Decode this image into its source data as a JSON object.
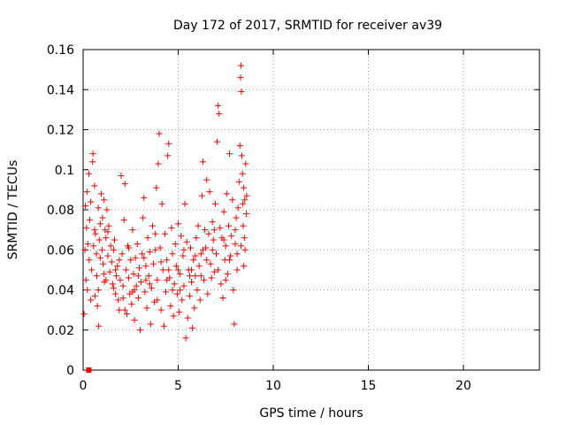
{
  "chart_data": {
    "type": "scatter",
    "title": "Day 172 of 2017, SRMTID for receiver av39",
    "xlabel": "GPS time / hours",
    "ylabel": "SRMTID / TECUs",
    "xlim": [
      0,
      24
    ],
    "ylim": [
      0,
      0.16
    ],
    "xticks": [
      0,
      5,
      10,
      15,
      20
    ],
    "xtick_labels": [
      "0",
      "5",
      "10",
      "15",
      "20"
    ],
    "yticks": [
      0,
      0.02,
      0.04,
      0.06,
      0.08,
      0.1,
      0.12,
      0.14,
      0.16
    ],
    "ytick_labels": [
      "0",
      "0.02",
      "0.04",
      "0.06",
      "0.08",
      "0.1",
      "0.12",
      "0.14",
      "0.16"
    ],
    "grid": true,
    "marker_color": "#ff0000",
    "series": [
      {
        "name": "SRMTID",
        "marker": "plus",
        "x_start": 0.0,
        "x_end": 8.6,
        "points": [
          [
            0.05,
            0.028
          ],
          [
            0.1,
            0.06
          ],
          [
            0.12,
            0.082
          ],
          [
            0.15,
            0.045
          ],
          [
            0.18,
            0.071
          ],
          [
            0.2,
            0.089
          ],
          [
            0.22,
            0.04
          ],
          [
            0.25,
            0.063
          ],
          [
            0.3,
            0.098
          ],
          [
            0.32,
            0.055
          ],
          [
            0.35,
            0.075
          ],
          [
            0.4,
            0.084
          ],
          [
            0.45,
            0.05
          ],
          [
            0.5,
            0.104
          ],
          [
            0.52,
            0.108
          ],
          [
            0.55,
            0.062
          ],
          [
            0.6,
            0.092
          ],
          [
            0.62,
            0.037
          ],
          [
            0.65,
            0.068
          ],
          [
            0.7,
            0.058
          ],
          [
            0.72,
            0.047
          ],
          [
            0.75,
            0.032
          ],
          [
            0.8,
            0.081
          ],
          [
            0.82,
            0.022
          ],
          [
            0.85,
            0.065
          ],
          [
            0.9,
            0.073
          ],
          [
            0.95,
            0.088
          ],
          [
            1.0,
            0.06
          ],
          [
            1.02,
            0.076
          ],
          [
            1.05,
            0.053
          ],
          [
            1.1,
            0.085
          ],
          [
            1.12,
            0.044
          ],
          [
            1.15,
            0.07
          ],
          [
            1.2,
            0.066
          ],
          [
            1.25,
            0.08
          ],
          [
            1.3,
            0.057
          ],
          [
            1.35,
            0.072
          ],
          [
            1.4,
            0.049
          ],
          [
            1.45,
            0.062
          ],
          [
            1.5,
            0.054
          ],
          [
            1.55,
            0.043
          ],
          [
            1.6,
            0.041
          ],
          [
            1.65,
            0.065
          ],
          [
            1.7,
            0.038
          ],
          [
            1.75,
            0.047
          ],
          [
            1.8,
            0.052
          ],
          [
            1.85,
            0.035
          ],
          [
            1.9,
            0.03
          ],
          [
            1.95,
            0.045
          ],
          [
            2.0,
            0.097
          ],
          [
            2.05,
            0.058
          ],
          [
            2.1,
            0.042
          ],
          [
            2.15,
            0.075
          ],
          [
            2.2,
            0.093
          ],
          [
            2.25,
            0.05
          ],
          [
            2.3,
            0.028
          ],
          [
            2.35,
            0.062
          ],
          [
            2.4,
            0.046
          ],
          [
            2.45,
            0.038
          ],
          [
            2.5,
            0.055
          ],
          [
            2.55,
            0.033
          ],
          [
            2.6,
            0.07
          ],
          [
            2.65,
            0.048
          ],
          [
            2.7,
            0.025
          ],
          [
            2.75,
            0.056
          ],
          [
            2.8,
            0.042
          ],
          [
            2.85,
            0.063
          ],
          [
            2.9,
            0.036
          ],
          [
            2.95,
            0.051
          ],
          [
            3.0,
            0.02
          ],
          [
            3.05,
            0.044
          ],
          [
            3.1,
            0.058
          ],
          [
            3.15,
            0.076
          ],
          [
            3.2,
            0.086
          ],
          [
            3.25,
            0.039
          ],
          [
            3.3,
            0.052
          ],
          [
            3.35,
            0.031
          ],
          [
            3.4,
            0.066
          ],
          [
            3.45,
            0.047
          ],
          [
            3.5,
            0.059
          ],
          [
            3.55,
            0.023
          ],
          [
            3.6,
            0.041
          ],
          [
            3.65,
            0.072
          ],
          [
            3.7,
            0.053
          ],
          [
            3.75,
            0.034
          ],
          [
            3.8,
            0.06
          ],
          [
            3.85,
            0.091
          ],
          [
            3.9,
            0.045
          ],
          [
            3.95,
            0.103
          ],
          [
            4.0,
            0.118
          ],
          [
            4.05,
            0.061
          ],
          [
            4.1,
            0.03
          ],
          [
            4.15,
            0.083
          ],
          [
            4.2,
            0.05
          ],
          [
            4.25,
            0.022
          ],
          [
            4.3,
            0.068
          ],
          [
            4.35,
            0.039
          ],
          [
            4.4,
            0.055
          ],
          [
            4.45,
            0.107
          ],
          [
            4.5,
            0.113
          ],
          [
            4.55,
            0.046
          ],
          [
            4.6,
            0.032
          ],
          [
            4.65,
            0.071
          ],
          [
            4.7,
            0.058
          ],
          [
            4.75,
            0.027
          ],
          [
            4.8,
            0.043
          ],
          [
            4.85,
            0.063
          ],
          [
            4.9,
            0.052
          ],
          [
            4.95,
            0.038
          ],
          [
            5.0,
            0.073
          ],
          [
            5.05,
            0.029
          ],
          [
            5.1,
            0.048
          ],
          [
            5.15,
            0.067
          ],
          [
            5.2,
            0.035
          ],
          [
            5.25,
            0.057
          ],
          [
            5.3,
            0.042
          ],
          [
            5.35,
            0.083
          ],
          [
            5.4,
            0.016
          ],
          [
            5.45,
            0.064
          ],
          [
            5.5,
            0.026
          ],
          [
            5.55,
            0.05
          ],
          [
            5.6,
            0.037
          ],
          [
            5.65,
            0.061
          ],
          [
            5.7,
            0.044
          ],
          [
            5.75,
            0.021
          ],
          [
            5.8,
            0.055
          ],
          [
            5.85,
            0.031
          ],
          [
            5.9,
            0.047
          ],
          [
            5.95,
            0.066
          ],
          [
            6.0,
            0.04
          ],
          [
            6.05,
            0.072
          ],
          [
            6.1,
            0.052
          ],
          [
            6.15,
            0.035
          ],
          [
            6.2,
            0.058
          ],
          [
            6.25,
            0.087
          ],
          [
            6.3,
            0.104
          ],
          [
            6.35,
            0.045
          ],
          [
            6.4,
            0.07
          ],
          [
            6.45,
            0.061
          ],
          [
            6.5,
            0.095
          ],
          [
            6.55,
            0.038
          ],
          [
            6.6,
            0.068
          ],
          [
            6.65,
            0.089
          ],
          [
            6.7,
            0.053
          ],
          [
            6.75,
            0.046
          ],
          [
            6.8,
            0.074
          ],
          [
            6.85,
            0.065
          ],
          [
            6.9,
            0.049
          ],
          [
            6.95,
            0.083
          ],
          [
            7.0,
            0.058
          ],
          [
            7.05,
            0.114
          ],
          [
            7.1,
            0.132
          ],
          [
            7.15,
            0.128
          ],
          [
            7.2,
            0.071
          ],
          [
            7.25,
            0.043
          ],
          [
            7.3,
            0.066
          ],
          [
            7.35,
            0.036
          ],
          [
            7.4,
            0.079
          ],
          [
            7.45,
            0.055
          ],
          [
            7.5,
            0.062
          ],
          [
            7.55,
            0.088
          ],
          [
            7.6,
            0.048
          ],
          [
            7.65,
            0.072
          ],
          [
            7.7,
            0.108
          ],
          [
            7.75,
            0.057
          ],
          [
            7.8,
            0.067
          ],
          [
            7.85,
            0.085
          ],
          [
            7.9,
            0.04
          ],
          [
            7.95,
            0.023
          ],
          [
            8.0,
            0.063
          ],
          [
            8.05,
            0.076
          ],
          [
            8.1,
            0.05
          ],
          [
            8.15,
            0.081
          ],
          [
            8.2,
            0.094
          ],
          [
            8.25,
            0.112
          ],
          [
            8.28,
            0.146
          ],
          [
            8.3,
            0.152
          ],
          [
            8.32,
            0.139
          ],
          [
            8.35,
            0.107
          ],
          [
            8.38,
            0.098
          ],
          [
            8.4,
            0.083
          ],
          [
            8.42,
            0.072
          ],
          [
            8.45,
            0.091
          ],
          [
            8.48,
            0.066
          ],
          [
            8.5,
            0.085
          ],
          [
            8.52,
            0.06
          ],
          [
            8.55,
            0.103
          ],
          [
            8.58,
            0.078
          ],
          [
            8.6,
            0.087
          ],
          [
            0.6,
            0.07
          ],
          [
            0.9,
            0.056
          ],
          [
            1.1,
            0.048
          ],
          [
            1.3,
            0.069
          ],
          [
            1.6,
            0.06
          ],
          [
            1.9,
            0.055
          ],
          [
            2.1,
            0.036
          ],
          [
            2.4,
            0.061
          ],
          [
            2.6,
            0.039
          ],
          [
            2.9,
            0.047
          ],
          [
            3.2,
            0.056
          ],
          [
            3.5,
            0.043
          ],
          [
            3.8,
            0.068
          ],
          [
            4.1,
            0.054
          ],
          [
            4.4,
            0.045
          ],
          [
            4.7,
            0.04
          ],
          [
            5.0,
            0.05
          ],
          [
            5.3,
            0.06
          ],
          [
            5.6,
            0.047
          ],
          [
            5.9,
            0.057
          ],
          [
            6.2,
            0.047
          ],
          [
            6.5,
            0.055
          ],
          [
            6.8,
            0.06
          ],
          [
            7.1,
            0.05
          ],
          [
            7.4,
            0.065
          ],
          [
            7.7,
            0.055
          ],
          [
            8.0,
            0.07
          ],
          [
            8.3,
            0.062
          ],
          [
            0.4,
            0.035
          ],
          [
            0.8,
            0.04
          ],
          [
            1.2,
            0.045
          ],
          [
            1.7,
            0.05
          ],
          [
            2.2,
            0.03
          ],
          [
            2.7,
            0.04
          ],
          [
            3.3,
            0.045
          ],
          [
            3.9,
            0.035
          ],
          [
            4.5,
            0.05
          ],
          [
            5.1,
            0.04
          ],
          [
            5.7,
            0.05
          ],
          [
            6.3,
            0.06
          ],
          [
            6.9,
            0.07
          ],
          [
            7.5,
            0.045
          ],
          [
            8.1,
            0.058
          ],
          [
            8.45,
            0.052
          ]
        ]
      },
      {
        "name": "zero-marker",
        "marker": "square",
        "points": [
          [
            0.3,
            0.0
          ]
        ]
      }
    ]
  }
}
